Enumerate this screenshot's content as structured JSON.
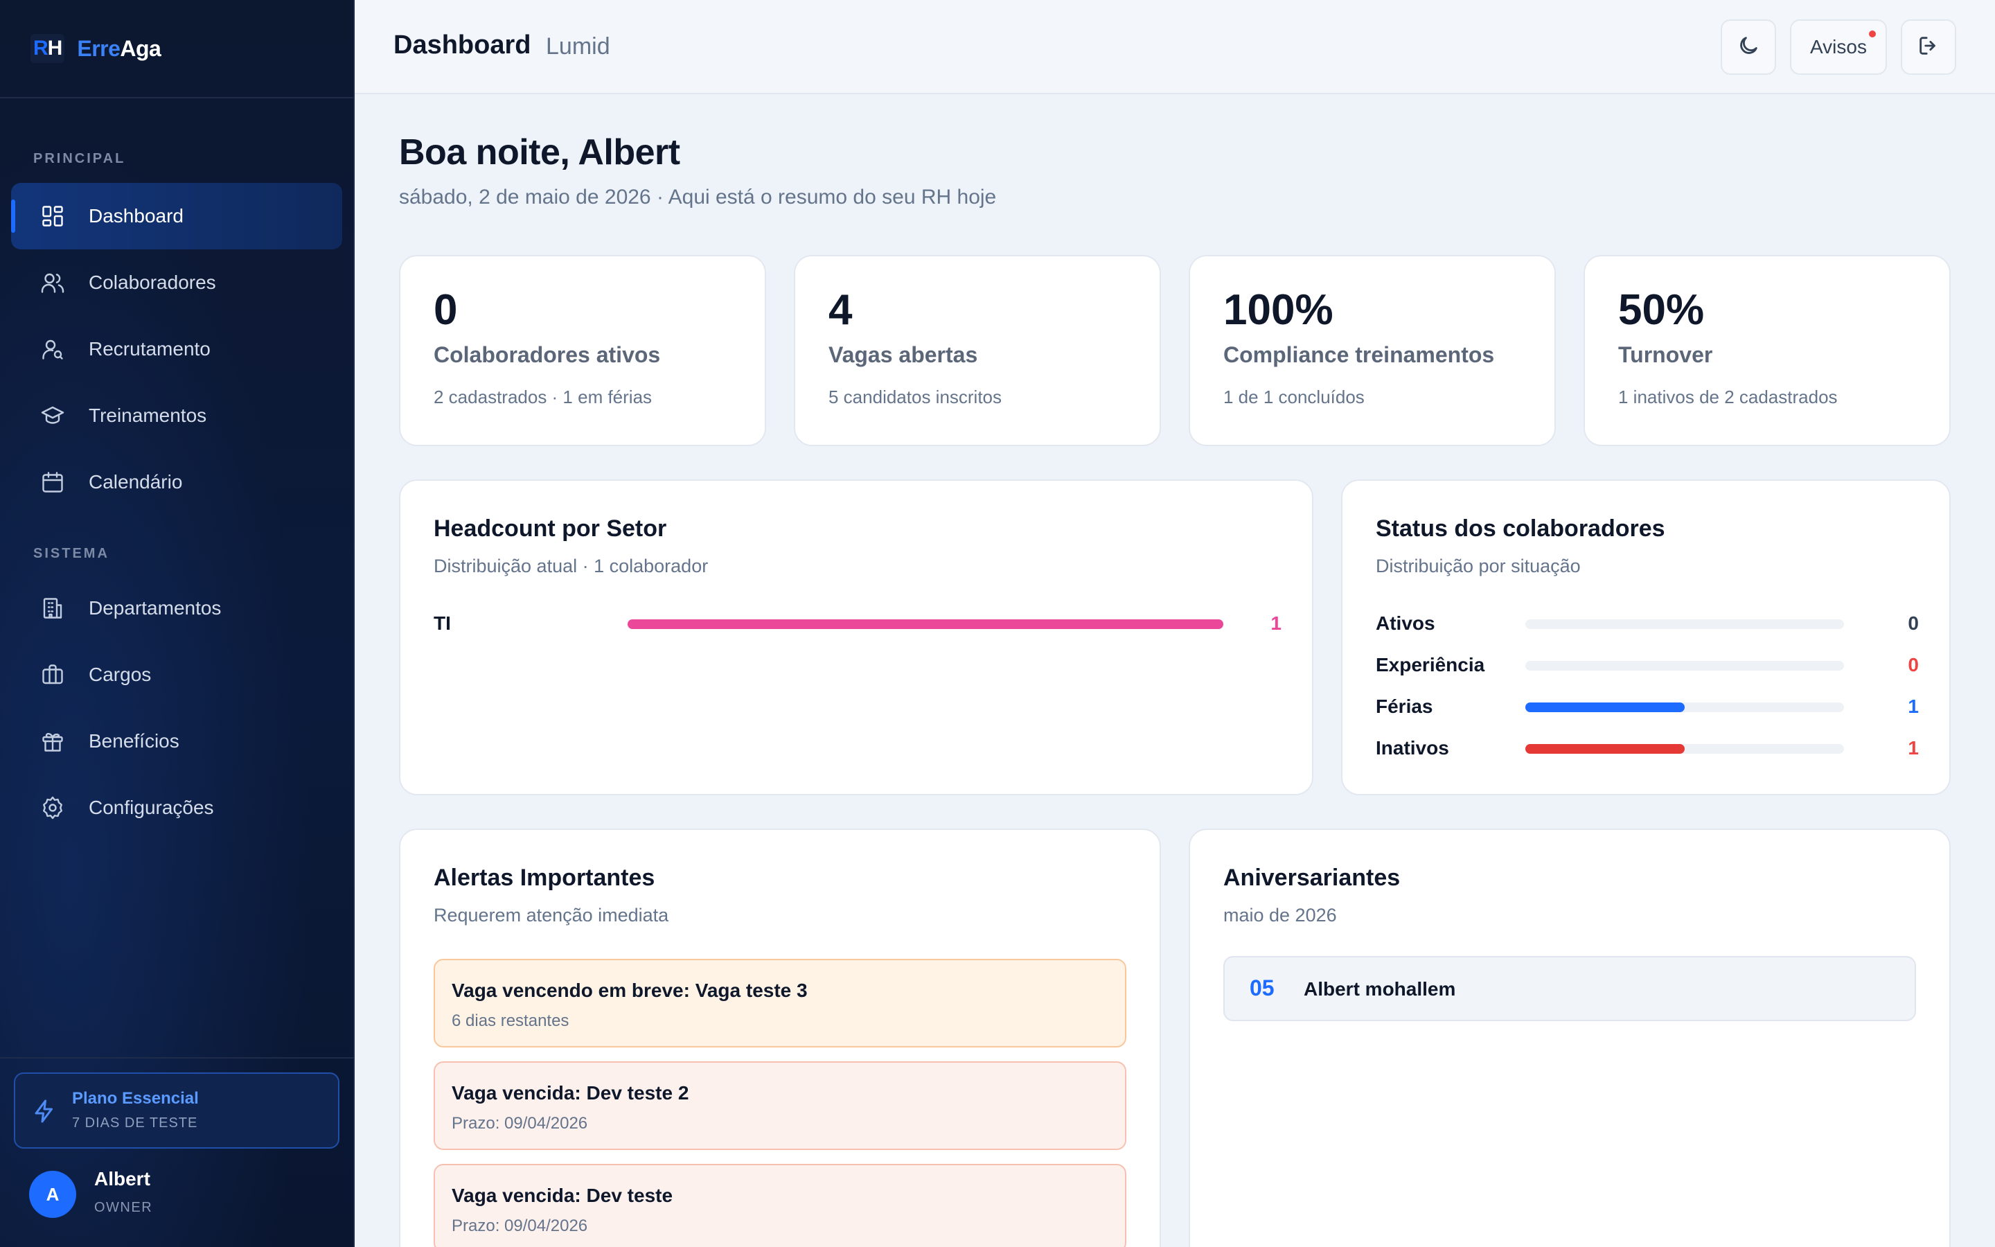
{
  "brand": {
    "mark_r": "R",
    "mark_h": "H",
    "name_part1": "Erre",
    "name_part2": "Aga"
  },
  "sidebar": {
    "section_principal": "PRINCIPAL",
    "section_sistema": "SISTEMA",
    "items": [
      {
        "label": "Dashboard",
        "icon": "dashboard-icon",
        "active": true
      },
      {
        "label": "Colaboradores",
        "icon": "users-icon"
      },
      {
        "label": "Recrutamento",
        "icon": "user-search-icon"
      },
      {
        "label": "Treinamentos",
        "icon": "graduation-cap-icon"
      },
      {
        "label": "Calendário",
        "icon": "calendar-icon"
      },
      {
        "label": "Departamentos",
        "icon": "building-icon"
      },
      {
        "label": "Cargos",
        "icon": "briefcase-icon"
      },
      {
        "label": "Benefícios",
        "icon": "gift-icon"
      },
      {
        "label": "Configurações",
        "icon": "gear-icon"
      }
    ],
    "plan": {
      "title": "Plano Essencial",
      "subtitle": "7 DIAS DE TESTE",
      "icon": "lightning-icon"
    },
    "user": {
      "initial": "A",
      "name": "Albert",
      "role": "OWNER"
    }
  },
  "topbar": {
    "title": "Dashboard",
    "company": "Lumid",
    "theme_icon": "moon-icon",
    "notices_label": "Avisos",
    "logout_icon": "logout-icon"
  },
  "greeting": {
    "title": "Boa noite, Albert",
    "subtitle": "sábado, 2 de maio de 2026 · Aqui está o resumo do seu RH hoje"
  },
  "kpis": [
    {
      "value": "0",
      "label": "Colaboradores ativos",
      "sub": "2 cadastrados · 1 em férias"
    },
    {
      "value": "4",
      "label": "Vagas abertas",
      "sub": "5 candidatos inscritos"
    },
    {
      "value": "100%",
      "label": "Compliance treinamentos",
      "sub": "1 de 1 concluídos"
    },
    {
      "value": "50%",
      "label": "Turnover",
      "sub": "1 inativos de 2 cadastrados"
    }
  ],
  "headcount": {
    "title": "Headcount por Setor",
    "subtitle": "Distribuição atual · 1 colaborador",
    "rows": [
      {
        "label": "TI",
        "count": "1",
        "fraction": 1.0,
        "color": "#ec4899"
      }
    ]
  },
  "status": {
    "title": "Status dos colaboradores",
    "subtitle": "Distribuição por situação",
    "rows": [
      {
        "label": "Ativos",
        "count": "0",
        "fraction": 0,
        "color": "#334155",
        "bar_color": "#1d6bff"
      },
      {
        "label": "Experiência",
        "count": "0",
        "fraction": 0,
        "color": "#ef4444",
        "bar_color": "#ef4444"
      },
      {
        "label": "Férias",
        "count": "1",
        "fraction": 0.5,
        "color": "#1d6bff",
        "bar_color": "#1d6bff"
      },
      {
        "label": "Inativos",
        "count": "1",
        "fraction": 0.5,
        "color": "#ef4444",
        "bar_color": "#e53935"
      }
    ]
  },
  "alerts": {
    "title": "Alertas Importantes",
    "subtitle": "Requerem atenção imediata",
    "items": [
      {
        "title": "Vaga vencendo em breve: Vaga teste 3",
        "sub": "6 dias restantes",
        "kind": "warn"
      },
      {
        "title": "Vaga vencida: Dev teste 2",
        "sub": "Prazo: 09/04/2026",
        "kind": "danger"
      },
      {
        "title": "Vaga vencida: Dev teste",
        "sub": "Prazo: 09/04/2026",
        "kind": "danger"
      }
    ]
  },
  "birthdays": {
    "title": "Aniversariantes",
    "subtitle": "maio de 2026",
    "items": [
      {
        "day": "05",
        "name": "Albert mohallem"
      }
    ]
  }
}
